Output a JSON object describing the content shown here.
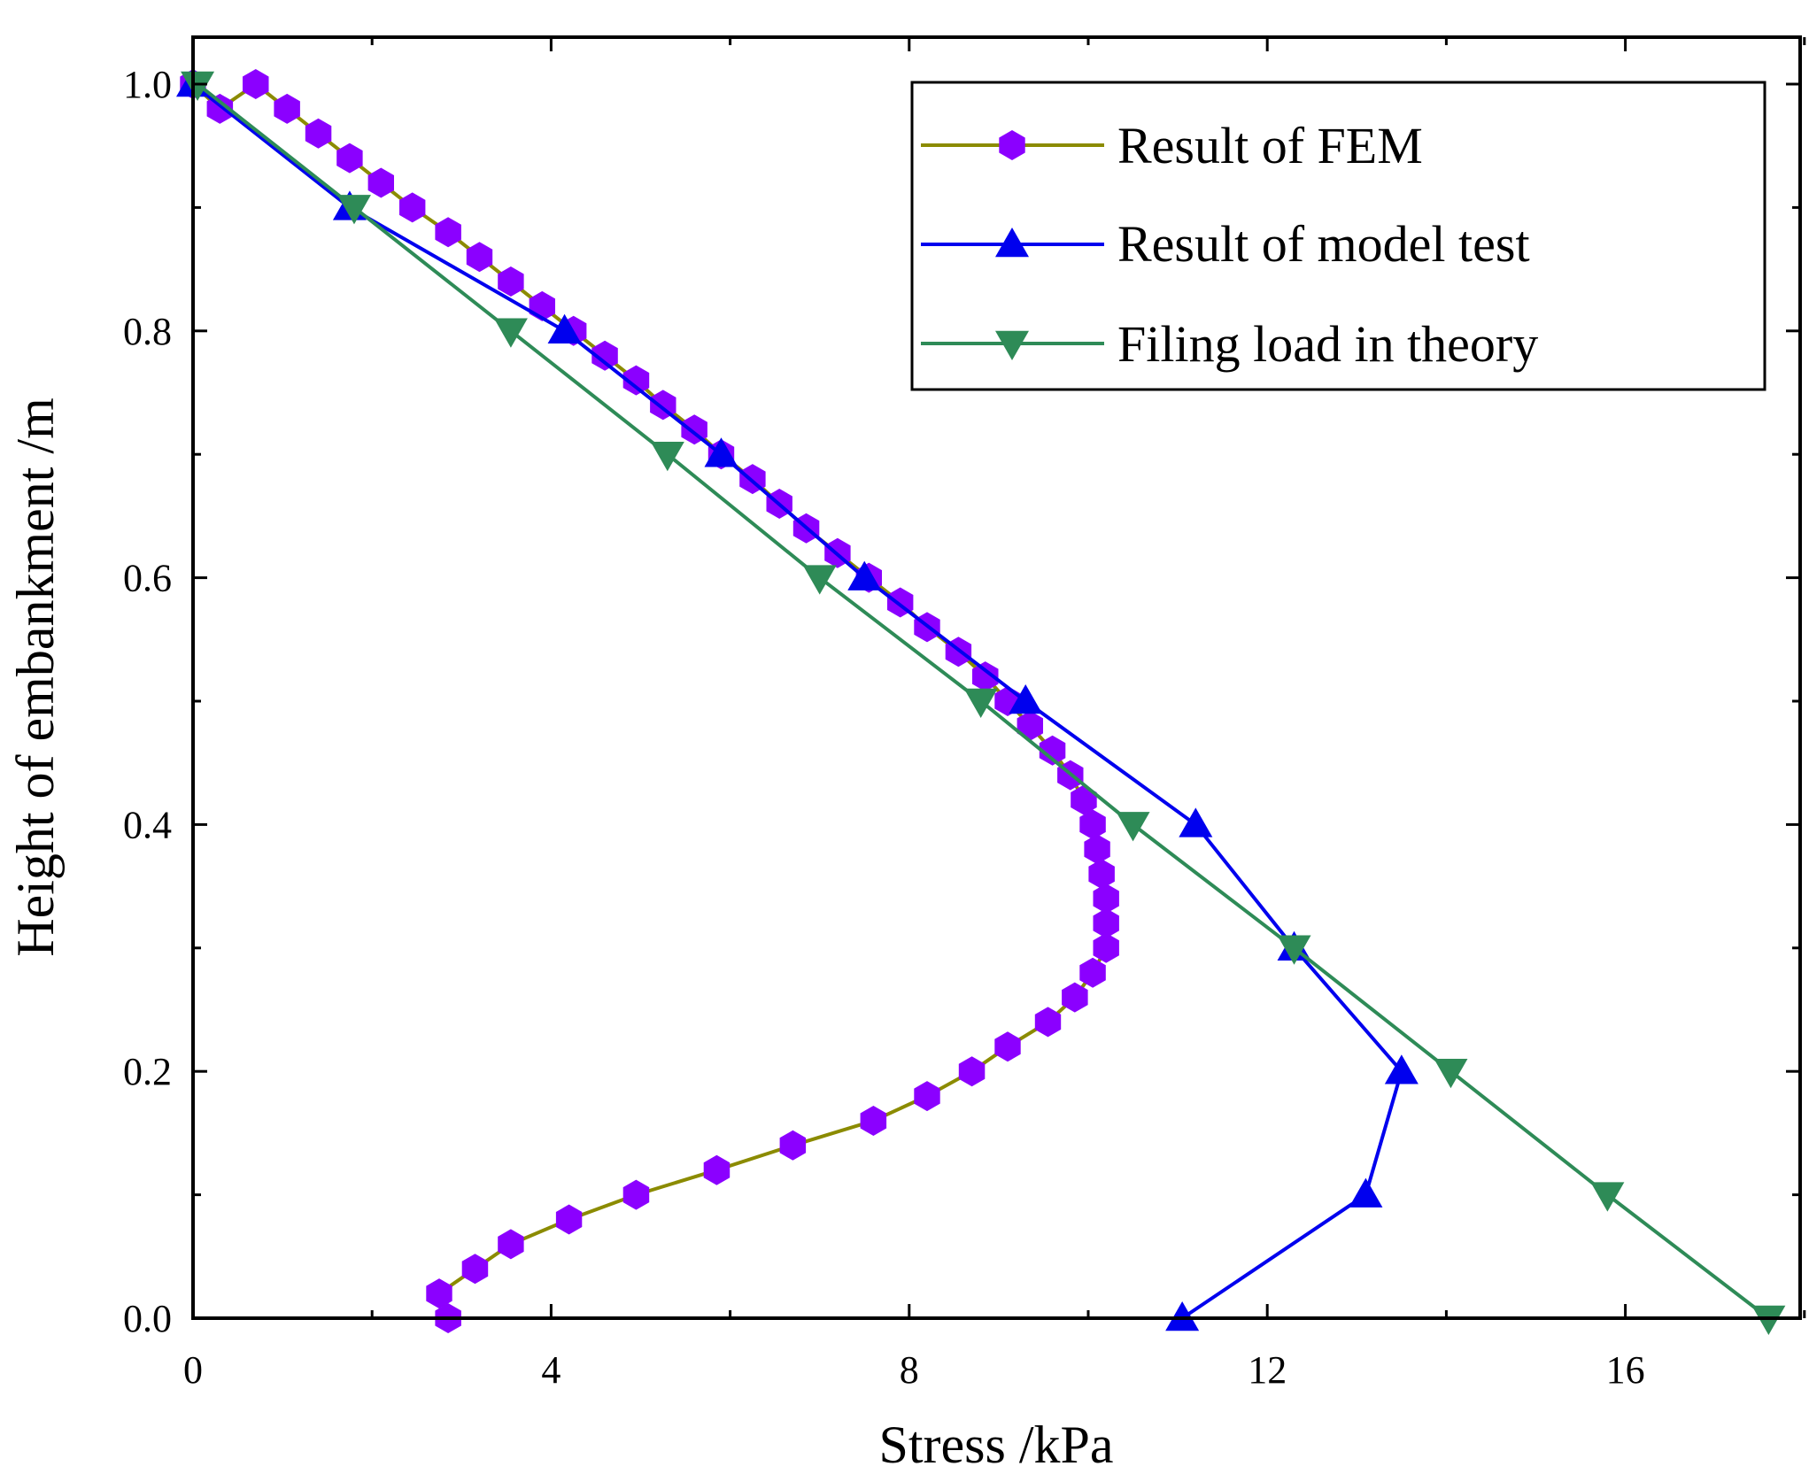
{
  "chart_data": {
    "type": "line",
    "title": "",
    "xlabel": "Stress /kPa",
    "ylabel": "Height of embankment /m",
    "xlim": [
      0,
      18
    ],
    "ylim": [
      0,
      1.05
    ],
    "x_ticks": [
      0,
      4,
      8,
      12,
      16
    ],
    "x_tick_labels": [
      "0",
      "4",
      "8",
      "12",
      "16"
    ],
    "y_ticks": [
      0.0,
      0.2,
      0.4,
      0.6,
      0.8,
      1.0
    ],
    "y_tick_labels": [
      "0.0",
      "0.2",
      "0.4",
      "0.6",
      "0.8",
      "1.0"
    ],
    "grid": false,
    "legend_position": "top-right",
    "series": [
      {
        "name": "Result of FEM",
        "line_color": "#8b8b00",
        "marker": "hexagon",
        "marker_color": "#8b00ff",
        "x": [
          2.85,
          2.75,
          3.15,
          3.55,
          4.2,
          4.95,
          5.85,
          6.7,
          7.6,
          8.2,
          8.7,
          9.1,
          9.55,
          9.85,
          10.05,
          10.2,
          10.2,
          10.2,
          10.15,
          10.1,
          10.05,
          9.95,
          9.8,
          9.6,
          9.35,
          9.1,
          8.85,
          8.55,
          8.2,
          7.9,
          7.55,
          7.2,
          6.85,
          6.55,
          6.25,
          5.9,
          5.6,
          5.25,
          4.95,
          4.6,
          4.25,
          3.9,
          3.55,
          3.2,
          2.85,
          2.45,
          2.1,
          1.75,
          1.4,
          1.05,
          0.7,
          0.3,
          0.0
        ],
        "y": [
          0.0,
          0.02,
          0.04,
          0.06,
          0.08,
          0.1,
          0.12,
          0.14,
          0.16,
          0.18,
          0.2,
          0.22,
          0.24,
          0.26,
          0.28,
          0.3,
          0.32,
          0.34,
          0.36,
          0.38,
          0.4,
          0.42,
          0.44,
          0.46,
          0.48,
          0.5,
          0.52,
          0.54,
          0.56,
          0.58,
          0.6,
          0.62,
          0.64,
          0.66,
          0.68,
          0.7,
          0.72,
          0.74,
          0.76,
          0.78,
          0.8,
          0.82,
          0.84,
          0.86,
          0.88,
          0.9,
          0.92,
          0.94,
          0.96,
          0.98,
          1.0,
          0.98,
          1.0
        ]
      },
      {
        "name": "Result of model test",
        "line_color": "#0000ee",
        "marker": "triangle-up",
        "marker_color": "#0000ee",
        "x": [
          11.05,
          13.1,
          13.5,
          12.3,
          11.2,
          9.3,
          7.5,
          5.9,
          4.15,
          1.75,
          0.0
        ],
        "y": [
          0.0,
          0.1,
          0.2,
          0.3,
          0.4,
          0.5,
          0.6,
          0.7,
          0.8,
          0.9,
          1.0
        ]
      },
      {
        "name": "Filing load in theory",
        "line_color": "#2e8b57",
        "marker": "triangle-down",
        "marker_color": "#2e8b57",
        "x": [
          17.6,
          15.8,
          14.05,
          12.3,
          10.5,
          8.8,
          7.0,
          5.3,
          3.55,
          1.8,
          0.05
        ],
        "y": [
          0.0,
          0.1,
          0.2,
          0.3,
          0.4,
          0.5,
          0.6,
          0.7,
          0.8,
          0.9,
          1.0
        ]
      }
    ]
  }
}
